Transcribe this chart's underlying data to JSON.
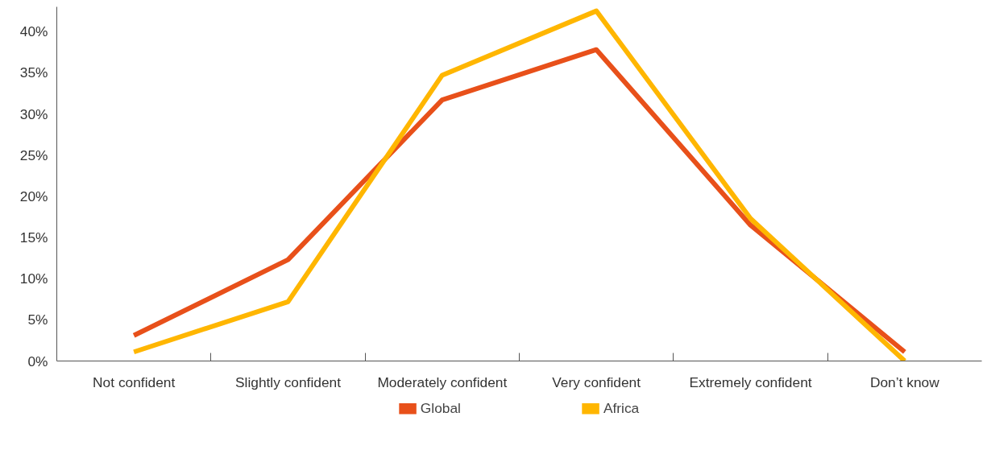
{
  "chart_data": {
    "type": "line",
    "categories": [
      "Not confident",
      "Slightly confident",
      "Moderately confident",
      "Very confident",
      "Extremely confident",
      "Don’t know"
    ],
    "series": [
      {
        "name": "Global",
        "color": "#e8501a",
        "values": [
          3.1,
          12.3,
          31.7,
          37.8,
          16.5,
          1.1
        ]
      },
      {
        "name": "Africa",
        "color": "#ffb600",
        "values": [
          1.1,
          7.2,
          34.7,
          42.5,
          17.3,
          0
        ]
      }
    ],
    "ylim": [
      0,
      43
    ],
    "yticks": [
      {
        "value": 0,
        "label": "0%"
      },
      {
        "value": 5,
        "label": "5%"
      },
      {
        "value": 10,
        "label": "10%"
      },
      {
        "value": 15,
        "label": "15%"
      },
      {
        "value": 20,
        "label": "20%"
      },
      {
        "value": 25,
        "label": "25%"
      },
      {
        "value": 30,
        "label": "30%"
      },
      {
        "value": 35,
        "label": "35%"
      },
      {
        "value": 40,
        "label": "40%"
      }
    ],
    "grid": false,
    "legend": "bottom",
    "marker": "none",
    "line_style": "solid"
  }
}
